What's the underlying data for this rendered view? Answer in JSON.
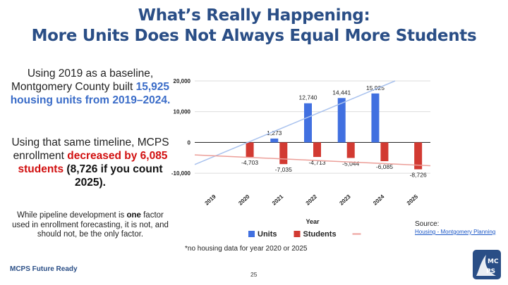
{
  "title": {
    "line1": "What’s Really Happening:",
    "line2": "More Units Does Not Always Equal More Students"
  },
  "left": {
    "p1_a": "Using 2019 as a baseline, Montgomery County built",
    "p1_b": "15,925 housing units from 2019–2024.",
    "p2_a": "Using that same timeline, MCPS enrollment",
    "p2_b": "decreased by 6,085 students",
    "p2_c": "(8,726 if you count 2025).",
    "p3_a": "While pipeline development is",
    "p3_b": "one",
    "p3_c": "factor used in enrollment forecasting, it is not, and should not, be the only factor."
  },
  "note": "*no housing data for year 2020 or 2025",
  "source": {
    "label": "Source:",
    "link": "Housing - Montgomery Planning"
  },
  "footer": "MCPS Future Ready",
  "page_number": "25",
  "logo_text": "MCPS",
  "colors": {
    "title": "#2a4e86",
    "units": "#4170e0",
    "students": "#d23a32",
    "trend_units": "#a9c2ee",
    "trend_students": "#ec9e98",
    "emphasis_red": "#d10f0f",
    "emphasis_blue": "#3a6cc8"
  },
  "chart_data": {
    "type": "bar",
    "categories": [
      "2019",
      "2020",
      "2021",
      "2022",
      "2023",
      "2024",
      "2025"
    ],
    "series": [
      {
        "name": "Units",
        "values": [
          null,
          null,
          1273,
          12740,
          14441,
          15925,
          null
        ],
        "labels": [
          "",
          "",
          "1,273",
          "12,740",
          "14,441",
          "15,925",
          ""
        ]
      },
      {
        "name": "Students",
        "values": [
          null,
          -4703,
          -7035,
          -4713,
          -5044,
          -6085,
          -8726
        ],
        "labels": [
          "",
          "-4,703",
          "-7,035",
          "-4,713",
          "-5,044",
          "-6,085",
          "-8,726"
        ]
      }
    ],
    "trendlines": [
      "Units",
      "Students"
    ],
    "legend_trend_label": "",
    "xlabel": "Year",
    "ylabel": "",
    "ylim": [
      -15000,
      20000
    ],
    "yticks": [
      20000,
      10000,
      0,
      -10000
    ],
    "ytick_labels": [
      "20,000",
      "10,000",
      "0",
      "-10,000"
    ],
    "grid": true,
    "legend_position": "bottom"
  }
}
